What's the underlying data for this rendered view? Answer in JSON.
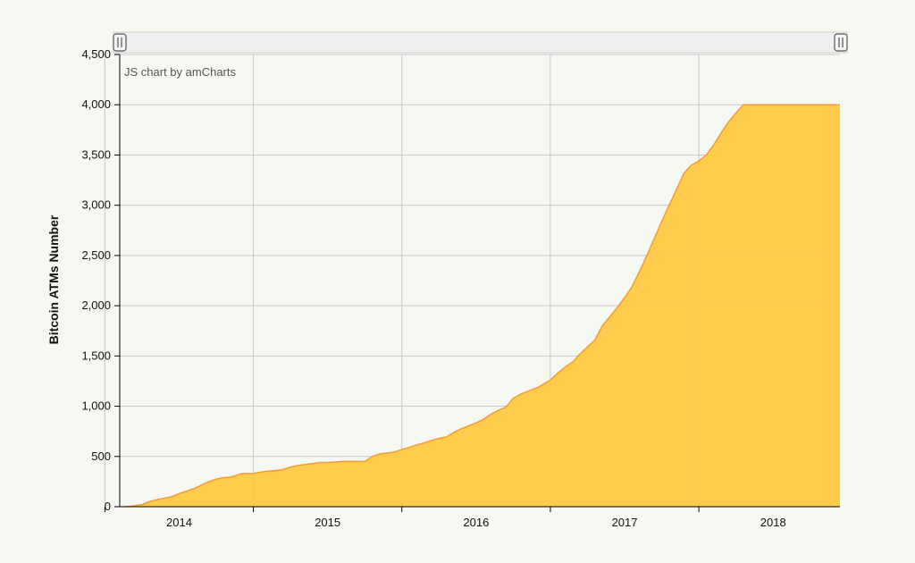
{
  "chart_data": {
    "type": "area",
    "title": "",
    "xlabel": "",
    "ylabel": "Bitcoin ATMs Number",
    "credit": "JS chart by amCharts",
    "ylim": [
      0,
      4500
    ],
    "yticks": [
      0,
      500,
      1000,
      1500,
      2000,
      2500,
      3000,
      3500,
      4000,
      4500
    ],
    "ytick_labels": [
      "0",
      "500",
      "1,000",
      "1,500",
      "2,000",
      "2,500",
      "3,000",
      "3,500",
      "4,000",
      "4,500"
    ],
    "xlim": [
      2013.6,
      2018.45
    ],
    "xticks": [
      2014,
      2015,
      2016,
      2017,
      2018
    ],
    "xtick_labels": [
      "2014",
      "2015",
      "2016",
      "2017",
      "2018"
    ],
    "grid": true,
    "fill_color": "#ffc83d",
    "line_color": "#f39c3a",
    "x": [
      2013.63,
      2013.67,
      2013.75,
      2013.8,
      2013.85,
      2013.9,
      2013.95,
      2014.0,
      2014.05,
      2014.1,
      2014.15,
      2014.2,
      2014.25,
      2014.3,
      2014.35,
      2014.42,
      2014.5,
      2014.55,
      2014.6,
      2014.65,
      2014.7,
      2014.75,
      2014.8,
      2014.85,
      2014.9,
      2014.95,
      2015.0,
      2015.05,
      2015.1,
      2015.15,
      2015.2,
      2015.25,
      2015.3,
      2015.35,
      2015.4,
      2015.45,
      2015.5,
      2015.55,
      2015.6,
      2015.65,
      2015.7,
      2015.75,
      2015.8,
      2015.85,
      2015.9,
      2015.95,
      2016.0,
      2016.05,
      2016.1,
      2016.15,
      2016.2,
      2016.25,
      2016.3,
      2016.35,
      2016.42,
      2016.5,
      2016.55,
      2016.6,
      2016.65,
      2016.7,
      2016.75,
      2016.8,
      2016.85,
      2016.9,
      2016.95,
      2017.0,
      2017.05,
      2017.1,
      2017.15,
      2017.2,
      2017.25,
      2017.3,
      2017.35,
      2017.4,
      2017.45,
      2017.5,
      2017.55,
      2017.6,
      2017.65,
      2017.7,
      2017.75,
      2017.8,
      2017.85,
      2017.9,
      2017.95,
      2018.0,
      2018.05,
      2018.1,
      2018.15,
      2018.2,
      2018.25,
      2018.3,
      2018.35,
      2018.4,
      2018.45
    ],
    "y": [
      0,
      5,
      20,
      50,
      70,
      85,
      100,
      130,
      155,
      180,
      215,
      250,
      275,
      290,
      295,
      330,
      330,
      345,
      355,
      360,
      370,
      395,
      410,
      420,
      430,
      440,
      440,
      445,
      450,
      450,
      450,
      450,
      500,
      525,
      535,
      545,
      570,
      590,
      615,
      635,
      660,
      680,
      695,
      740,
      775,
      805,
      835,
      870,
      920,
      960,
      990,
      1080,
      1120,
      1150,
      1190,
      1260,
      1330,
      1390,
      1440,
      1520,
      1590,
      1660,
      1800,
      1890,
      1980,
      2080,
      2190,
      2340,
      2500,
      2670,
      2840,
      3000,
      3160,
      3320,
      3400,
      3440,
      3500,
      3600,
      3720,
      3830,
      3920,
      4000,
      4000,
      4000,
      4000,
      4000,
      4000,
      4000,
      4000,
      4000,
      4000,
      4000,
      4000,
      4000,
      4000
    ]
  }
}
